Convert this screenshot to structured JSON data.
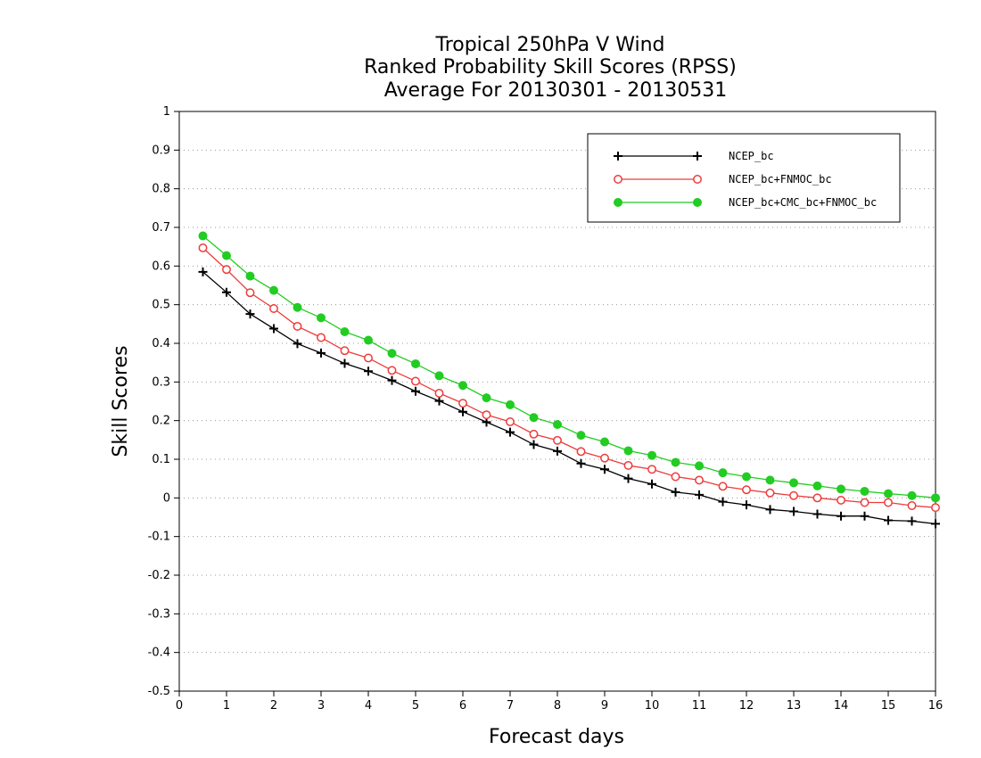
{
  "chart_data": {
    "type": "line",
    "title_lines": [
      "Tropical 250hPa V Wind",
      "Ranked Probability Skill Scores (RPSS)",
      "Average For 20130301 - 20130531"
    ],
    "xlabel": "Forecast days",
    "ylabel": "Skill Scores",
    "xlim": [
      0,
      16
    ],
    "ylim": [
      -0.5,
      1
    ],
    "xticks": [
      0,
      1,
      2,
      3,
      4,
      5,
      6,
      7,
      8,
      9,
      10,
      11,
      12,
      13,
      14,
      15,
      16
    ],
    "xtick_labels": [
      "0",
      "1",
      "2",
      "3",
      "4",
      "5",
      "6",
      "7",
      "8",
      "9",
      "10",
      "11",
      "12",
      "13",
      "14",
      "15",
      "16"
    ],
    "yticks": [
      -0.5,
      -0.4,
      -0.3,
      -0.2,
      -0.1,
      0,
      0.1,
      0.2,
      0.3,
      0.4,
      0.5,
      0.6,
      0.7,
      0.8,
      0.9,
      1
    ],
    "ytick_labels": [
      "-0.5",
      "-0.4",
      "-0.3",
      "-0.2",
      "-0.1",
      "0",
      "0.1",
      "0.2",
      "0.3",
      "0.4",
      "0.5",
      "0.6",
      "0.7",
      "0.8",
      "0.9",
      "1"
    ],
    "grid": "horizontal-dotted",
    "legend_position": "top-right",
    "x": [
      0.5,
      1,
      1.5,
      2,
      2.5,
      3,
      3.5,
      4,
      4.5,
      5,
      5.5,
      6,
      6.5,
      7,
      7.5,
      8,
      8.5,
      9,
      9.5,
      10,
      10.5,
      11,
      11.5,
      12,
      12.5,
      13,
      13.5,
      14,
      14.5,
      15,
      15.5,
      16
    ],
    "series": [
      {
        "name": "NCEP_bc",
        "color": "#000000",
        "marker": "plus",
        "values": [
          0.585,
          0.532,
          0.476,
          0.438,
          0.399,
          0.375,
          0.348,
          0.328,
          0.304,
          0.276,
          0.251,
          0.223,
          0.196,
          0.17,
          0.138,
          0.121,
          0.089,
          0.074,
          0.05,
          0.036,
          0.015,
          0.008,
          -0.01,
          -0.018,
          -0.03,
          -0.035,
          -0.042,
          -0.047,
          -0.047,
          -0.058,
          -0.06,
          -0.067
        ]
      },
      {
        "name": "NCEP_bc+FNMOC_bc",
        "color": "#ee3b3b",
        "marker": "open-circle",
        "values": [
          0.647,
          0.591,
          0.531,
          0.49,
          0.444,
          0.415,
          0.381,
          0.362,
          0.33,
          0.302,
          0.271,
          0.245,
          0.215,
          0.197,
          0.165,
          0.149,
          0.12,
          0.103,
          0.084,
          0.074,
          0.055,
          0.046,
          0.03,
          0.021,
          0.013,
          0.006,
          0.0,
          -0.006,
          -0.012,
          -0.012,
          -0.02,
          -0.025
        ]
      },
      {
        "name": "NCEP_bc+CMC_bc+FNMOC_bc",
        "color": "#22cc22",
        "marker": "filled-circle",
        "values": [
          0.678,
          0.627,
          0.574,
          0.537,
          0.493,
          0.466,
          0.43,
          0.408,
          0.374,
          0.347,
          0.316,
          0.291,
          0.259,
          0.241,
          0.208,
          0.19,
          0.162,
          0.145,
          0.122,
          0.11,
          0.092,
          0.083,
          0.065,
          0.055,
          0.046,
          0.039,
          0.031,
          0.023,
          0.017,
          0.011,
          0.006,
          0.0
        ]
      }
    ]
  }
}
